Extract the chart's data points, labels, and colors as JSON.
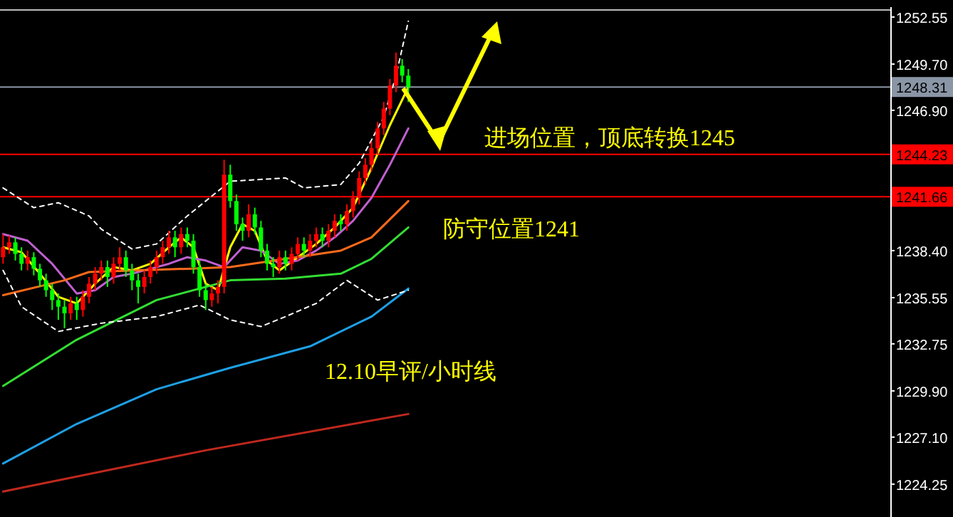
{
  "chart_data": {
    "type": "candlestick",
    "categories": [
      null,
      null,
      null,
      null,
      null,
      null,
      null,
      null,
      null,
      null,
      null,
      null,
      null,
      null,
      null,
      null,
      null,
      null,
      null,
      null,
      null,
      null,
      null,
      null,
      null,
      null,
      null,
      null,
      null,
      null,
      null,
      null,
      null,
      null,
      null,
      null,
      null,
      null,
      null,
      null,
      null,
      null,
      null,
      null,
      null,
      null,
      null,
      null,
      null,
      null,
      null,
      null,
      null,
      null,
      null,
      null,
      null,
      null,
      null,
      null,
      null,
      null,
      null,
      null,
      null,
      null,
      null,
      null,
      null,
      null,
      null,
      null,
      null,
      null,
      null,
      null,
      null,
      null,
      null,
      null,
      null,
      null,
      null,
      null,
      null,
      null,
      null,
      null,
      null,
      null,
      null,
      null,
      null,
      null,
      null,
      null,
      null,
      null,
      null,
      null,
      null,
      null,
      null,
      null,
      null,
      null,
      null,
      null,
      null,
      null,
      null,
      null,
      null,
      null,
      null,
      null,
      null,
      null,
      null,
      null,
      null,
      null,
      null,
      null,
      null,
      null,
      null,
      null,
      null,
      null,
      null,
      null,
      null,
      null,
      null,
      null,
      null,
      null,
      null,
      null,
      null,
      null,
      null,
      null,
      null
    ],
    "ohlc": [
      [
        1238.0,
        1239.4,
        1237.6,
        1238.6
      ],
      [
        1238.6,
        1239.3,
        1238.2,
        1238.9
      ],
      [
        1238.9,
        1239.2,
        1237.8,
        1238.2
      ],
      [
        1238.2,
        1238.6,
        1237.2,
        1237.6
      ],
      [
        1237.6,
        1238.4,
        1237.2,
        1238.0
      ],
      [
        1238.0,
        1238.3,
        1236.9,
        1237.3
      ],
      [
        1237.3,
        1237.6,
        1236.2,
        1236.6
      ],
      [
        1236.6,
        1237.0,
        1235.6,
        1236.0
      ],
      [
        1236.0,
        1236.4,
        1234.8,
        1235.4
      ],
      [
        1235.4,
        1235.8,
        1234.2,
        1235.0
      ],
      [
        1235.0,
        1235.4,
        1233.7,
        1234.6
      ],
      [
        1234.6,
        1235.6,
        1234.2,
        1235.2
      ],
      [
        1235.2,
        1235.6,
        1234.2,
        1234.8
      ],
      [
        1234.8,
        1236.0,
        1234.4,
        1235.6
      ],
      [
        1235.6,
        1236.8,
        1235.2,
        1236.4
      ],
      [
        1236.4,
        1237.4,
        1236.0,
        1237.0
      ],
      [
        1237.0,
        1237.8,
        1236.6,
        1237.4
      ],
      [
        1237.4,
        1237.8,
        1236.2,
        1236.8
      ],
      [
        1236.8,
        1238.0,
        1236.4,
        1237.6
      ],
      [
        1237.6,
        1238.6,
        1237.2,
        1238.0
      ],
      [
        1238.0,
        1238.4,
        1236.8,
        1237.2
      ],
      [
        1237.2,
        1237.6,
        1236.0,
        1236.6
      ],
      [
        1236.6,
        1237.0,
        1235.2,
        1236.2
      ],
      [
        1236.2,
        1237.2,
        1235.8,
        1236.8
      ],
      [
        1236.8,
        1237.8,
        1236.4,
        1237.4
      ],
      [
        1237.4,
        1238.4,
        1237.0,
        1238.0
      ],
      [
        1238.0,
        1239.0,
        1237.6,
        1238.6
      ],
      [
        1238.6,
        1239.6,
        1238.2,
        1239.2
      ],
      [
        1239.2,
        1239.6,
        1238.0,
        1238.6
      ],
      [
        1238.6,
        1239.8,
        1238.2,
        1239.4
      ],
      [
        1239.4,
        1239.8,
        1238.6,
        1239.0
      ],
      [
        1239.0,
        1239.4,
        1237.0,
        1237.4
      ],
      [
        1237.4,
        1237.8,
        1235.6,
        1236.0
      ],
      [
        1236.0,
        1236.4,
        1234.8,
        1235.4
      ],
      [
        1235.4,
        1236.2,
        1235.0,
        1235.8
      ],
      [
        1235.8,
        1236.6,
        1235.2,
        1236.2
      ],
      [
        1236.2,
        1243.9,
        1235.8,
        1243.0
      ],
      [
        1243.0,
        1243.6,
        1241.0,
        1241.4
      ],
      [
        1241.4,
        1241.8,
        1239.6,
        1240.0
      ],
      [
        1240.0,
        1240.4,
        1239.0,
        1239.6
      ],
      [
        1239.6,
        1241.2,
        1239.2,
        1240.6
      ],
      [
        1240.6,
        1241.0,
        1239.4,
        1239.8
      ],
      [
        1239.8,
        1240.2,
        1238.0,
        1238.4
      ],
      [
        1238.4,
        1238.8,
        1237.2,
        1237.6
      ],
      [
        1237.6,
        1238.0,
        1236.8,
        1237.4
      ],
      [
        1237.4,
        1238.4,
        1237.0,
        1238.0
      ],
      [
        1238.0,
        1238.4,
        1237.2,
        1237.6
      ],
      [
        1237.6,
        1238.6,
        1237.2,
        1238.2
      ],
      [
        1238.2,
        1239.2,
        1237.8,
        1238.8
      ],
      [
        1238.8,
        1239.2,
        1238.0,
        1238.4
      ],
      [
        1238.4,
        1239.4,
        1238.0,
        1239.0
      ],
      [
        1239.0,
        1239.8,
        1238.6,
        1239.4
      ],
      [
        1239.4,
        1239.8,
        1238.6,
        1239.0
      ],
      [
        1239.0,
        1240.0,
        1238.6,
        1239.6
      ],
      [
        1239.6,
        1240.6,
        1239.2,
        1240.2
      ],
      [
        1240.2,
        1240.6,
        1239.6,
        1240.0
      ],
      [
        1240.0,
        1241.2,
        1239.6,
        1240.8
      ],
      [
        1240.8,
        1242.0,
        1240.4,
        1241.6
      ],
      [
        1241.6,
        1243.2,
        1241.2,
        1242.8
      ],
      [
        1242.8,
        1244.0,
        1242.4,
        1243.6
      ],
      [
        1243.6,
        1245.0,
        1243.2,
        1244.6
      ],
      [
        1244.6,
        1246.2,
        1244.2,
        1245.8
      ],
      [
        1245.8,
        1247.4,
        1245.4,
        1247.0
      ],
      [
        1247.0,
        1248.8,
        1246.6,
        1248.4
      ],
      [
        1248.4,
        1250.4,
        1248.0,
        1249.6
      ],
      [
        1249.6,
        1250.0,
        1248.6,
        1249.0
      ],
      [
        1249.0,
        1249.4,
        1247.4,
        1248.3
      ],
      null,
      null,
      null,
      null,
      null,
      null,
      null,
      null,
      null,
      null,
      null,
      null,
      null,
      null,
      null,
      null,
      null,
      null,
      null,
      null,
      null,
      null,
      null,
      null,
      null,
      null,
      null,
      null,
      null,
      null,
      null,
      null,
      null,
      null,
      null,
      null,
      null,
      null,
      null,
      null,
      null,
      null,
      null,
      null,
      null,
      null,
      null,
      null,
      null,
      null,
      null,
      null,
      null,
      null,
      null,
      null,
      null,
      null,
      null,
      null,
      null,
      null,
      null,
      null,
      null,
      null,
      null,
      null,
      null,
      null,
      null,
      null,
      null,
      null,
      null,
      null,
      null,
      null
    ],
    "series": [
      {
        "type": "line",
        "color": "#ffff00",
        "values": [
          1238.6,
          null,
          null,
          1238.3,
          null,
          null,
          1237.0,
          null,
          null,
          1235.6,
          null,
          null,
          1235.2,
          null,
          null,
          1236.4,
          null,
          null,
          1237.4,
          null,
          null,
          1237.2,
          null,
          null,
          1237.6,
          null,
          null,
          1238.6,
          null,
          1239.2,
          null,
          1238.6,
          null,
          1236.4,
          null,
          1236.0,
          null,
          1238.6,
          null,
          1240.0,
          null,
          1239.6,
          null,
          1237.8,
          null,
          1237.2,
          null,
          null,
          1238.0,
          null,
          null,
          1238.8,
          null,
          null,
          1239.8,
          null,
          null,
          1241.0,
          null,
          null,
          1243.4,
          null,
          null,
          1246.0,
          null,
          null,
          1248.3,
          null,
          null,
          null,
          null,
          null,
          null,
          null,
          null,
          null,
          null,
          null,
          null,
          null,
          null,
          null,
          null,
          null,
          null,
          null,
          null,
          null,
          null,
          null,
          null,
          null,
          null,
          null,
          null,
          null,
          null,
          null,
          null,
          null,
          null,
          null,
          null,
          null,
          null,
          null,
          null,
          null,
          null,
          null,
          null,
          null,
          null,
          null,
          null,
          null,
          null,
          null,
          null,
          null,
          null,
          null,
          null,
          null,
          null,
          null,
          null,
          null,
          null,
          null,
          null,
          null,
          null,
          null,
          null,
          null,
          null,
          null,
          null,
          null,
          null,
          null,
          null,
          null,
          null
        ]
      },
      {
        "type": "line",
        "color": "#c060d0",
        "values": [
          1239.4,
          null,
          null,
          null,
          1239.0,
          null,
          null,
          null,
          1237.6,
          null,
          null,
          null,
          1235.8,
          null,
          null,
          1236.0,
          null,
          null,
          1236.8,
          null,
          null,
          1237.0,
          null,
          null,
          1237.3,
          null,
          null,
          1237.6,
          null,
          null,
          1238.0,
          null,
          null,
          1237.8,
          null,
          null,
          1237.4,
          null,
          null,
          1238.6,
          null,
          null,
          1238.4,
          null,
          null,
          1237.6,
          null,
          null,
          1237.8,
          null,
          null,
          1238.4,
          null,
          null,
          1239.2,
          null,
          null,
          1240.2,
          null,
          null,
          1241.6,
          null,
          null,
          1243.6,
          null,
          null,
          1245.8,
          null,
          null,
          null,
          null,
          null,
          null,
          null,
          null,
          null,
          null,
          null,
          null,
          null,
          null,
          null,
          null,
          null,
          null,
          null,
          null,
          null,
          null,
          null,
          null,
          null,
          null,
          null,
          null,
          null,
          null,
          null,
          null,
          null,
          null,
          null,
          null,
          null,
          null,
          null,
          null,
          null,
          null,
          null,
          null,
          null,
          null,
          null,
          null,
          null,
          null,
          null,
          null,
          null,
          null,
          null,
          null,
          null,
          null,
          null,
          null,
          null,
          null,
          null,
          null,
          null,
          null,
          null,
          null,
          null,
          null,
          null,
          null,
          null,
          null,
          null,
          null,
          null,
          null
        ]
      },
      {
        "type": "line",
        "color": "#ff6a1a",
        "values": [
          1235.7,
          null,
          null,
          null,
          null,
          null,
          null,
          null,
          null,
          null,
          1236.6,
          null,
          null,
          null,
          1237.1,
          null,
          null,
          null,
          null,
          null,
          null,
          null,
          null,
          null,
          null,
          null,
          null,
          null,
          null,
          null,
          1237.3,
          null,
          null,
          null,
          null,
          null,
          null,
          1237.4,
          null,
          null,
          null,
          null,
          null,
          null,
          null,
          null,
          1237.9,
          null,
          null,
          null,
          null,
          null,
          null,
          null,
          null,
          1238.4,
          null,
          null,
          null,
          null,
          1239.2,
          null,
          null,
          null,
          null,
          null,
          1241.4,
          null,
          null,
          null,
          null,
          null,
          null,
          null,
          null,
          null,
          null,
          null,
          null,
          null,
          null,
          null,
          null,
          null,
          null,
          null,
          null,
          null,
          null,
          null,
          null,
          null,
          null,
          null,
          null,
          null,
          null,
          null,
          null,
          null,
          null,
          null,
          null,
          null,
          null,
          null,
          null,
          null,
          null,
          null,
          null,
          null,
          null,
          null,
          null,
          null,
          null,
          null,
          null,
          null,
          null,
          null,
          null,
          null,
          null,
          null,
          null,
          null,
          null,
          null,
          null,
          null,
          null,
          null,
          null,
          null,
          null,
          null,
          null,
          null,
          null,
          null,
          null,
          null,
          null
        ]
      },
      {
        "type": "line",
        "color": "#33dd33",
        "values": [
          1230.2,
          null,
          null,
          null,
          null,
          null,
          null,
          null,
          null,
          null,
          null,
          null,
          1233.0,
          null,
          null,
          null,
          null,
          null,
          null,
          null,
          null,
          null,
          null,
          null,
          null,
          1235.4,
          null,
          null,
          null,
          null,
          null,
          null,
          null,
          null,
          null,
          null,
          null,
          1236.6,
          null,
          null,
          null,
          null,
          null,
          null,
          null,
          null,
          1236.7,
          null,
          null,
          null,
          null,
          null,
          null,
          null,
          null,
          1237.0,
          null,
          null,
          null,
          null,
          1237.9,
          null,
          null,
          null,
          null,
          null,
          1239.8,
          null,
          null,
          null,
          null,
          null,
          null,
          null,
          null,
          null,
          null,
          null,
          null,
          null,
          null,
          null,
          null,
          null,
          null,
          null,
          null,
          null,
          null,
          null,
          null,
          null,
          null,
          null,
          null,
          null,
          null,
          null,
          null,
          null,
          null,
          null,
          null,
          null,
          null,
          null,
          null,
          null,
          null,
          null,
          null,
          null,
          null,
          null,
          null,
          null,
          null,
          null,
          null,
          null,
          null,
          null,
          null,
          null,
          null,
          null,
          null,
          null,
          null,
          null,
          null,
          null,
          null,
          null,
          null,
          null,
          null,
          null,
          null,
          null,
          null,
          null,
          null,
          null,
          null
        ]
      },
      {
        "type": "line",
        "color": "#1ea0e6",
        "values": [
          1225.5,
          null,
          null,
          null,
          null,
          null,
          null,
          null,
          null,
          null,
          null,
          null,
          1227.9,
          null,
          null,
          null,
          null,
          null,
          null,
          null,
          null,
          null,
          null,
          null,
          null,
          1230.0,
          null,
          null,
          null,
          null,
          null,
          null,
          null,
          null,
          null,
          null,
          null,
          1231.3,
          null,
          null,
          null,
          null,
          null,
          null,
          null,
          null,
          null,
          null,
          null,
          null,
          1232.6,
          null,
          null,
          null,
          null,
          null,
          null,
          null,
          null,
          null,
          1234.4,
          null,
          null,
          null,
          null,
          null,
          1236.1,
          null,
          null,
          null,
          null,
          null,
          null,
          null,
          null,
          null,
          null,
          null,
          null,
          null,
          null,
          null,
          null,
          null,
          null,
          null,
          null,
          null,
          null,
          null,
          null,
          null,
          null,
          null,
          null,
          null,
          null,
          null,
          null,
          null,
          null,
          null,
          null,
          null,
          null,
          null,
          null,
          null,
          null,
          null,
          null,
          null,
          null,
          null,
          null,
          null,
          null,
          null,
          null,
          null,
          null,
          null,
          null,
          null,
          null,
          null,
          null,
          null,
          null,
          null,
          null,
          null,
          null,
          null,
          null,
          null,
          null,
          null,
          null,
          null,
          null,
          null,
          null,
          null,
          null
        ]
      },
      {
        "type": "line",
        "color": "#c0281e",
        "values": [
          1223.8,
          null,
          null,
          null,
          null,
          null,
          null,
          null,
          null,
          null,
          null,
          null,
          null,
          null,
          null,
          null,
          null,
          null,
          null,
          null,
          null,
          null,
          null,
          null,
          null,
          null,
          null,
          null,
          null,
          null,
          null,
          null,
          null,
          1226.3,
          null,
          null,
          null,
          null,
          null,
          null,
          null,
          null,
          null,
          null,
          null,
          null,
          null,
          null,
          null,
          null,
          null,
          null,
          null,
          null,
          null,
          null,
          null,
          null,
          null,
          null,
          null,
          null,
          null,
          null,
          null,
          null,
          1228.5,
          null,
          null,
          null,
          null,
          null,
          null,
          null,
          null,
          null,
          null,
          null,
          null,
          null,
          null,
          null,
          null,
          null,
          null,
          null,
          null,
          null,
          null,
          null,
          null,
          null,
          null,
          null,
          null,
          null,
          null,
          null,
          null,
          null,
          null,
          null,
          null,
          null,
          null,
          null,
          null,
          null,
          null,
          null,
          null,
          null,
          null,
          null,
          null,
          null,
          null,
          null,
          null,
          null,
          null,
          null,
          null,
          null,
          null,
          null,
          null,
          null,
          null,
          null,
          null,
          null,
          null,
          null,
          null,
          null,
          null,
          null,
          null,
          null,
          null,
          null,
          null,
          null,
          null
        ]
      },
      {
        "type": "line",
        "color": "#ffffff",
        "line_style": "dashed",
        "values": [
          1242.2,
          null,
          null,
          null,
          null,
          1241.0,
          null,
          null,
          null,
          1241.3,
          null,
          null,
          null,
          null,
          1240.5,
          null,
          1239.7,
          null,
          null,
          null,
          null,
          1238.5,
          null,
          null,
          null,
          1238.8,
          null,
          null,
          null,
          null,
          1240.5,
          null,
          null,
          null,
          null,
          null,
          null,
          1242.6,
          null,
          null,
          null,
          null,
          null,
          null,
          null,
          null,
          1242.8,
          null,
          null,
          1242.2,
          null,
          null,
          null,
          null,
          null,
          1242.4,
          null,
          null,
          1243.7,
          null,
          null,
          null,
          1246.5,
          null,
          1249.0,
          null,
          1252.3,
          null,
          null,
          null,
          null,
          null,
          null,
          null,
          null,
          null,
          null,
          null,
          null,
          null,
          null,
          null,
          null,
          null,
          null,
          null,
          null,
          null,
          null,
          null,
          null,
          null,
          null,
          null,
          null,
          null,
          null,
          null,
          null,
          null,
          null,
          null,
          null,
          null,
          null,
          null,
          null,
          null,
          null,
          null,
          null,
          null,
          null,
          null,
          null,
          null,
          null,
          null,
          null,
          null,
          null,
          null,
          null,
          null,
          null,
          null,
          null,
          null,
          null,
          null,
          null,
          null,
          null,
          null,
          null,
          null,
          null,
          null,
          null,
          null,
          null,
          null,
          null,
          null,
          null
        ]
      },
      {
        "type": "line",
        "color": "#ffffff",
        "line_style": "dashed",
        "values": [
          1237.2,
          null,
          null,
          1235.0,
          null,
          null,
          null,
          null,
          null,
          1233.5,
          null,
          null,
          null,
          null,
          null,
          null,
          1234.0,
          null,
          null,
          null,
          null,
          null,
          null,
          null,
          null,
          1234.4,
          null,
          null,
          null,
          null,
          null,
          null,
          1235.1,
          null,
          null,
          null,
          null,
          1234.2,
          null,
          null,
          null,
          null,
          1233.8,
          null,
          null,
          null,
          1234.4,
          null,
          null,
          null,
          null,
          1235.2,
          null,
          null,
          null,
          null,
          1236.6,
          null,
          null,
          null,
          null,
          1235.4,
          null,
          null,
          null,
          null,
          1236.0,
          null,
          null,
          null,
          null,
          null,
          null,
          null,
          null,
          null,
          null,
          null,
          null,
          null,
          null,
          null,
          null,
          null,
          null,
          null,
          null,
          null,
          null,
          null,
          null,
          null,
          null,
          null,
          null,
          null,
          null,
          null,
          null,
          null,
          null,
          null,
          null,
          null,
          null,
          null,
          null,
          null,
          null,
          null,
          null,
          null,
          null,
          null,
          null,
          null,
          null,
          null,
          null,
          null,
          null,
          null,
          null,
          null,
          null,
          null,
          null,
          null,
          null,
          null,
          null,
          null,
          null,
          null,
          null,
          null,
          null,
          null,
          null,
          null,
          null,
          null,
          null,
          null,
          null
        ]
      }
    ],
    "ylim": [
      1222.26,
      1253.15
    ],
    "yticks": [
      1252.55,
      {
        "value": 1249.7,
        "label": "1249.70"
      },
      {
        "value": 1246.9,
        "label": "1246.90"
      },
      {
        "value": 1244.1,
        "label": null
      },
      {
        "value": 1241.25,
        "label": null
      },
      {
        "value": 1238.4,
        "label": "1238.40"
      },
      1235.55,
      1232.75,
      {
        "value": 1229.9,
        "label": "1229.90"
      },
      {
        "value": 1227.1,
        "label": "1227.10"
      },
      1224.25
    ],
    "tick_labels": "y",
    "ref_lines": [
      {
        "axis": "y",
        "value": 1248.31,
        "label": "1248.31",
        "color": "#8a96a6"
      },
      {
        "axis": "y",
        "value": 1244.23,
        "label": "1244.23",
        "color": "#ff0000"
      },
      {
        "axis": "y",
        "value": 1241.66,
        "label": "1241.66",
        "color": "#ff0000"
      }
    ],
    "annotations": [
      "进场位置，顶底转换1245",
      "防守位置1241",
      "12.10早评/小时线"
    ]
  }
}
